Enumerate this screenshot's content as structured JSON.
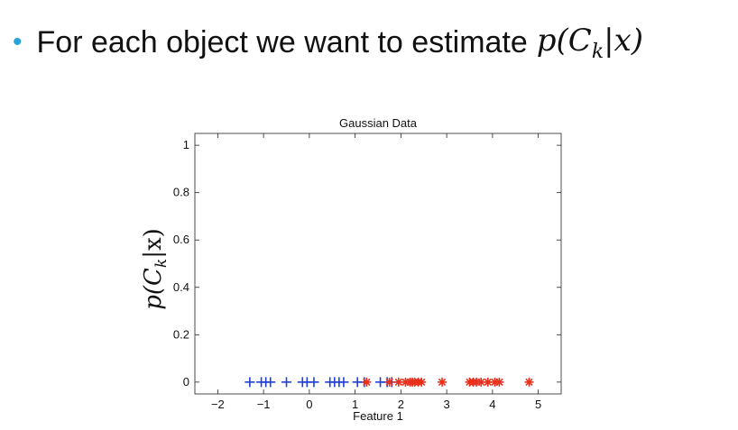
{
  "bullet": {
    "text": "For each object we want to estimate",
    "math": "p(C_k|x)"
  },
  "chart_data": {
    "type": "scatter",
    "title": "Gaussian Data",
    "xlabel": "Feature 1",
    "ylabel": "p(C_k|x)",
    "xlim": [
      -2.5,
      5.5
    ],
    "ylim": [
      -0.05,
      1.05
    ],
    "xticks": [
      -2,
      -1,
      0,
      1,
      2,
      3,
      4,
      5
    ],
    "yticks": [
      0,
      0.2,
      0.4,
      0.6,
      0.8,
      1
    ],
    "xtick_labels": [
      "−2",
      "−1",
      "0",
      "1",
      "2",
      "3",
      "4",
      "5"
    ],
    "ytick_labels": [
      "0",
      "0.2",
      "0.4",
      "0.6",
      "0.8",
      "1"
    ],
    "grid": false,
    "series": [
      {
        "marker": "+",
        "color": "#1f3fd6",
        "x": [
          -1.3,
          -1.05,
          -0.95,
          -0.85,
          -0.5,
          -0.15,
          -0.05,
          0.1,
          0.45,
          0.55,
          0.65,
          0.75,
          1.05,
          1.2,
          1.55,
          1.7,
          1.8
        ],
        "y": [
          0,
          0,
          0,
          0,
          0,
          0,
          0,
          0,
          0,
          0,
          0,
          0,
          0,
          0,
          0,
          0,
          0
        ]
      },
      {
        "marker": "*",
        "color": "#e8301c",
        "x": [
          1.25,
          1.75,
          1.95,
          2.1,
          2.2,
          2.25,
          2.3,
          2.38,
          2.45,
          2.9,
          3.5,
          3.58,
          3.65,
          3.75,
          3.9,
          4.05,
          4.15,
          4.8
        ],
        "y": [
          0,
          0,
          0,
          0,
          0,
          0,
          0,
          0,
          0,
          0,
          0,
          0,
          0,
          0,
          0,
          0,
          0,
          0
        ]
      }
    ]
  }
}
